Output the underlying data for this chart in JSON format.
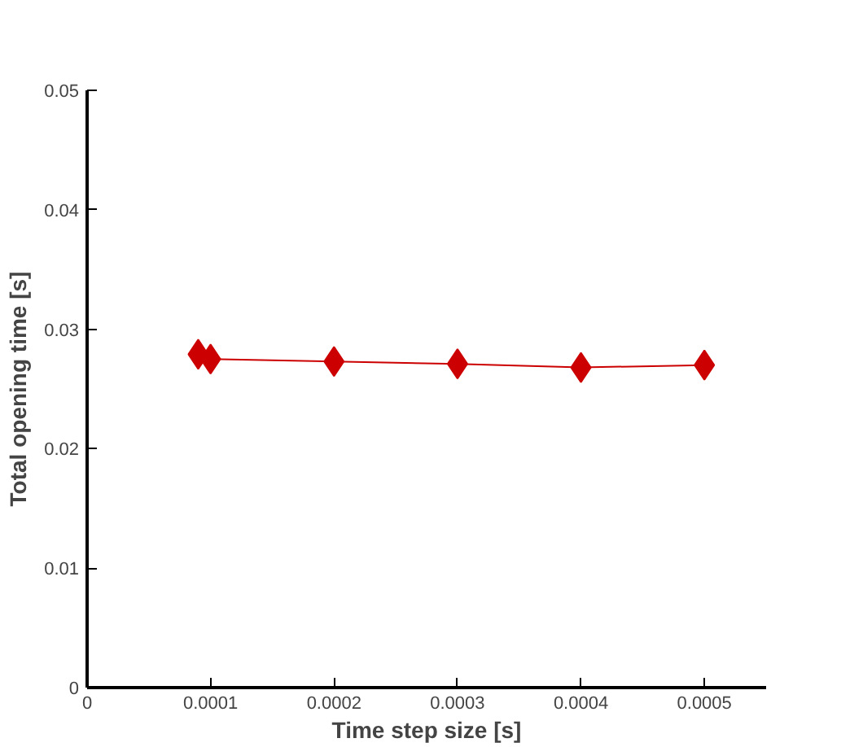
{
  "chart_data": {
    "type": "line",
    "xlabel": "Time step size [s]",
    "ylabel": "Total opening time [s]",
    "x": [
      9e-05,
      0.0001,
      0.0002,
      0.0003,
      0.0004,
      0.0005
    ],
    "series": [
      {
        "color": "#cc0000",
        "values": [
          0.0279,
          0.0275,
          0.0273,
          0.0271,
          0.0268,
          0.027
        ]
      }
    ],
    "xlim": [
      0,
      0.00055
    ],
    "ylim": [
      0,
      0.05
    ],
    "xticks": [
      0,
      0.0001,
      0.0002,
      0.0003,
      0.0004,
      0.0005
    ],
    "yticks": [
      0,
      0.01,
      0.02,
      0.03,
      0.04,
      0.05
    ],
    "marker": "diamond",
    "line_style": "solid",
    "grid": false
  }
}
